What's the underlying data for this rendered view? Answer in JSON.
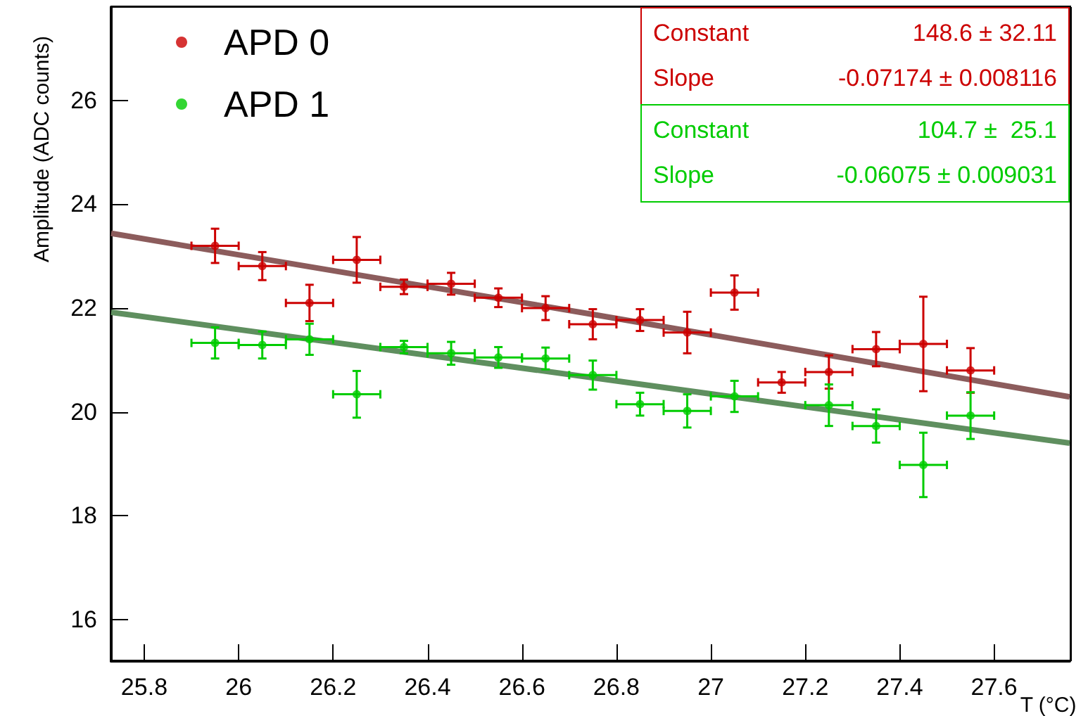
{
  "chart_data": {
    "type": "scatter",
    "xlabel": "T (°C)",
    "ylabel": "Amplitude (ADC counts)",
    "x": [
      25.95,
      26.05,
      26.15,
      26.25,
      26.35,
      26.45,
      26.55,
      26.65,
      26.75,
      26.85,
      26.95,
      27.05,
      27.15,
      27.25,
      27.35,
      27.45,
      27.55
    ],
    "series": [
      {
        "name": "APD 0",
        "color": "#cc0000",
        "marker": "circle",
        "values": [
          23.2,
          22.81,
          22.1,
          22.93,
          22.41,
          22.47,
          22.2,
          22.0,
          21.69,
          21.77,
          21.53,
          22.3,
          20.57,
          20.77,
          21.21,
          21.31,
          20.8
        ],
        "errors": [
          0.33,
          0.27,
          0.35,
          0.44,
          0.14,
          0.21,
          0.18,
          0.23,
          0.29,
          0.21,
          0.4,
          0.33,
          0.2,
          0.32,
          0.33,
          0.91,
          0.43
        ],
        "xerrors": [
          0.05,
          0.05,
          0.05,
          0.05,
          0.05,
          0.05,
          0.05,
          0.05,
          0.05,
          0.05,
          0.05,
          0.05,
          0.05,
          0.05,
          0.05,
          0.05,
          0.05
        ]
      },
      {
        "name": "APD 1",
        "color": "#00cc00",
        "marker": "circle",
        "values": [
          21.33,
          21.29,
          21.4,
          20.34,
          21.25,
          21.13,
          21.05,
          21.03,
          20.71,
          20.15,
          20.02,
          20.3,
          null,
          20.13,
          19.73,
          18.98,
          19.93
        ],
        "errors": [
          0.3,
          0.26,
          0.3,
          0.45,
          0.12,
          0.22,
          0.2,
          0.21,
          0.28,
          0.22,
          0.32,
          0.3,
          null,
          0.4,
          0.32,
          0.62,
          0.45
        ],
        "xerrors": [
          0.05,
          0.05,
          0.05,
          0.05,
          0.05,
          0.05,
          0.05,
          0.05,
          0.05,
          0.05,
          0.05,
          0.05,
          null,
          0.05,
          0.05,
          0.05,
          0.05
        ]
      },
      {
        "type": "line",
        "color": "#8c5c5c",
        "x": [
          25.73,
          26.75,
          27.76
        ],
        "values": [
          23.44,
          21.88,
          20.29
        ]
      },
      {
        "type": "line",
        "color": "#5f8f5f",
        "x": [
          25.73,
          26.75,
          27.76
        ],
        "values": [
          21.92,
          20.66,
          19.4
        ]
      }
    ],
    "annotations": [
      "Constant 148.6 ± 32.11",
      "Slope -0.07174 ± 0.008116",
      "Constant 104.7 ±  25.1",
      "Slope -0.06075 ± 0.009031"
    ],
    "xlim": [
      25.73,
      27.76
    ],
    "xticks": [
      25.8,
      26,
      26.2,
      26.4,
      26.6,
      26.8,
      27,
      27.2,
      27.4,
      27.6
    ],
    "ylim": [
      15.2,
      27.8
    ],
    "yticks": [
      16,
      18,
      20,
      22,
      24,
      26
    ],
    "marker": "none",
    "legend": "top left",
    "grid": false
  }
}
